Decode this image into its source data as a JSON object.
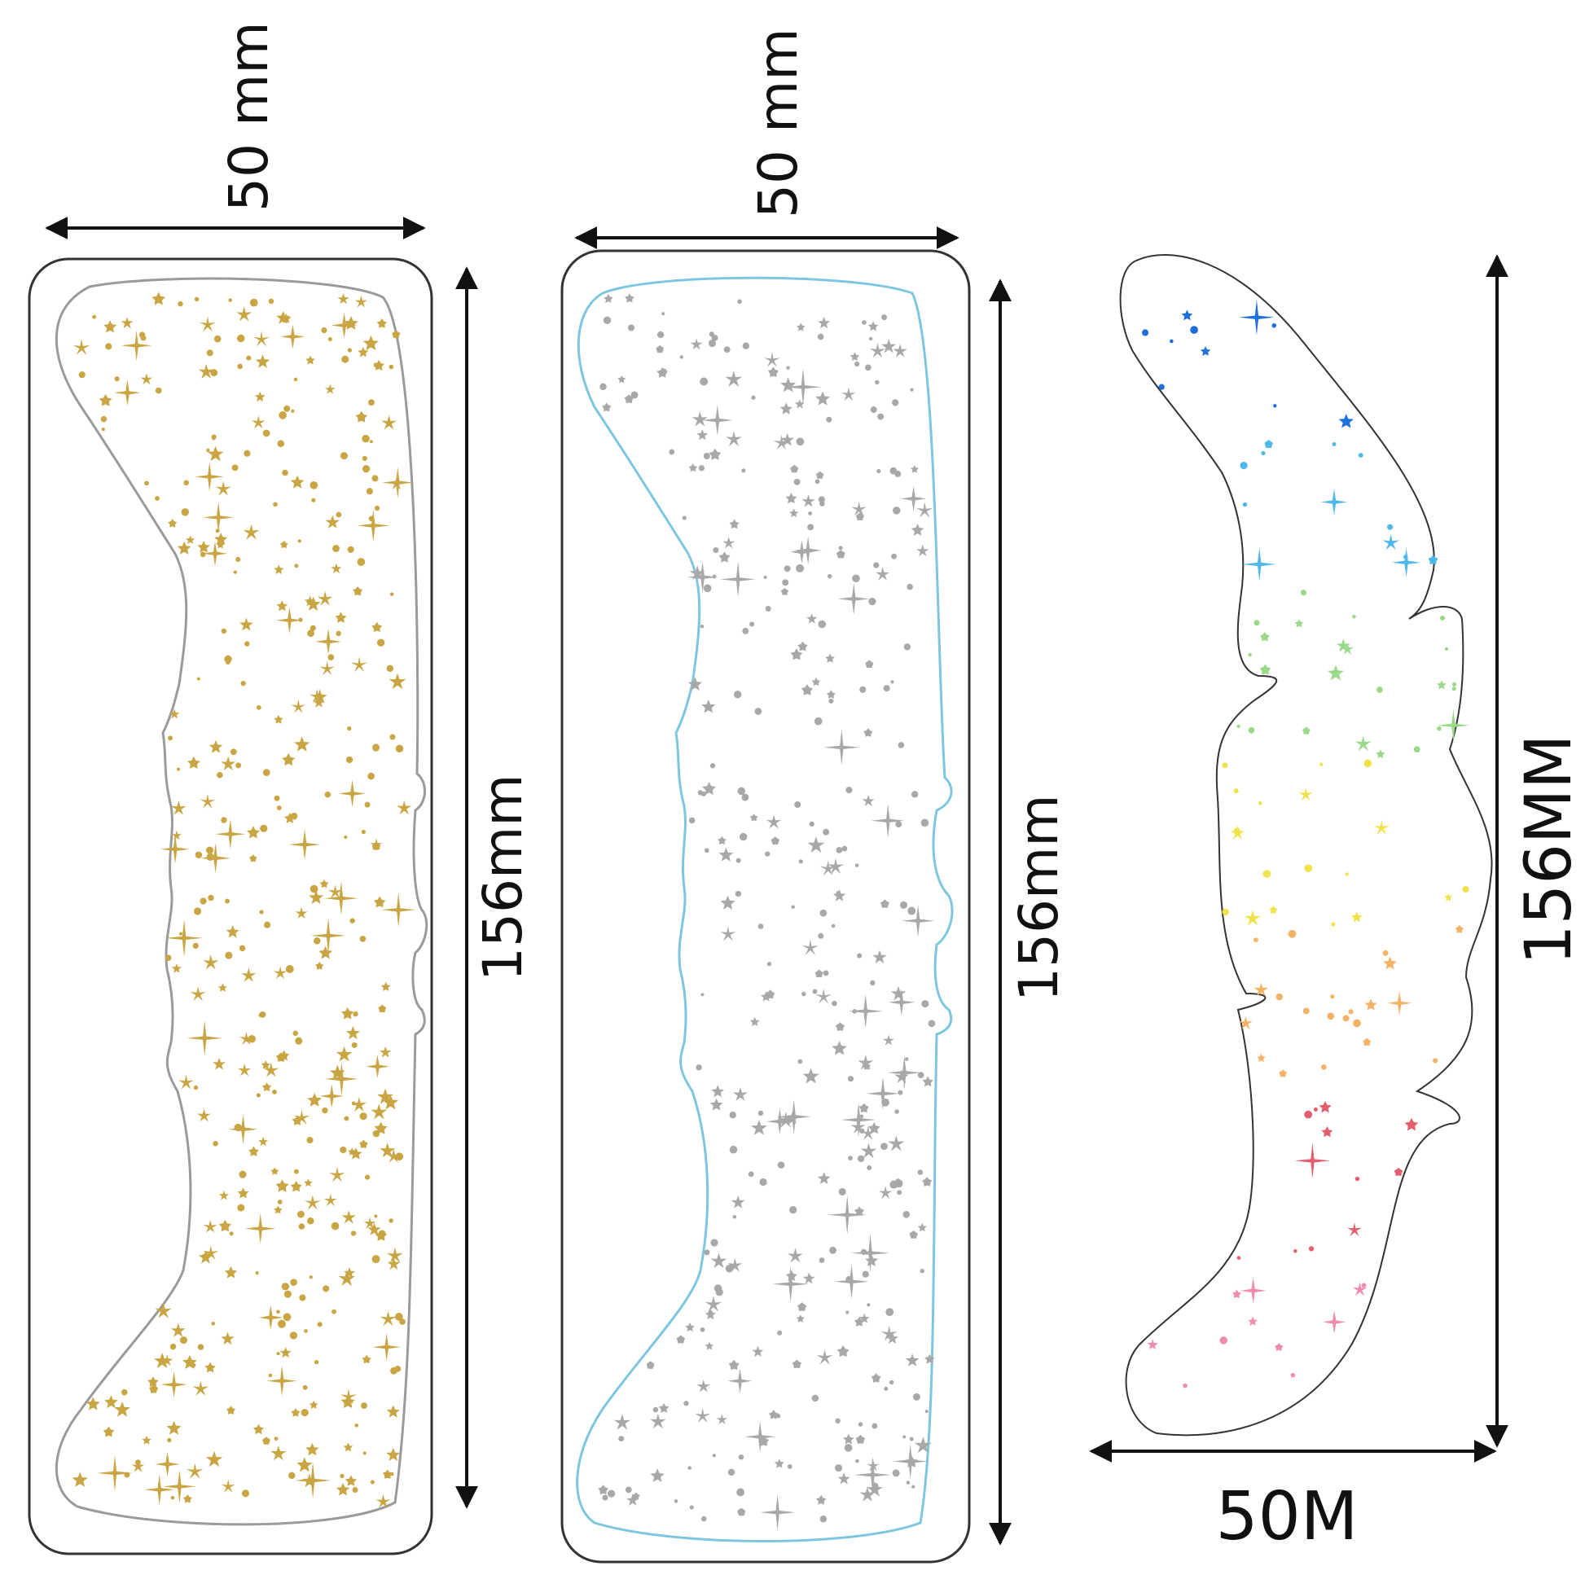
{
  "panels": [
    {
      "id": "gold",
      "width_label": "50 mm",
      "height_label": "156mm",
      "star_color": "#C9A544",
      "outline_color": "#9a9a9a"
    },
    {
      "id": "silver",
      "width_label": "50 mm",
      "height_label": "156mm",
      "star_color": "#A8A8A8",
      "outline_color": "#7EC6DF"
    },
    {
      "id": "rainbow",
      "width_label": "50M",
      "height_label": "156MM",
      "gradient": [
        "#1E6FD9",
        "#4FB8E8",
        "#9AD98A",
        "#F2E24A",
        "#F4B267",
        "#E2606E",
        "#F08BB0"
      ]
    }
  ],
  "colors": {
    "line": "#111111",
    "frame": "#333333"
  }
}
